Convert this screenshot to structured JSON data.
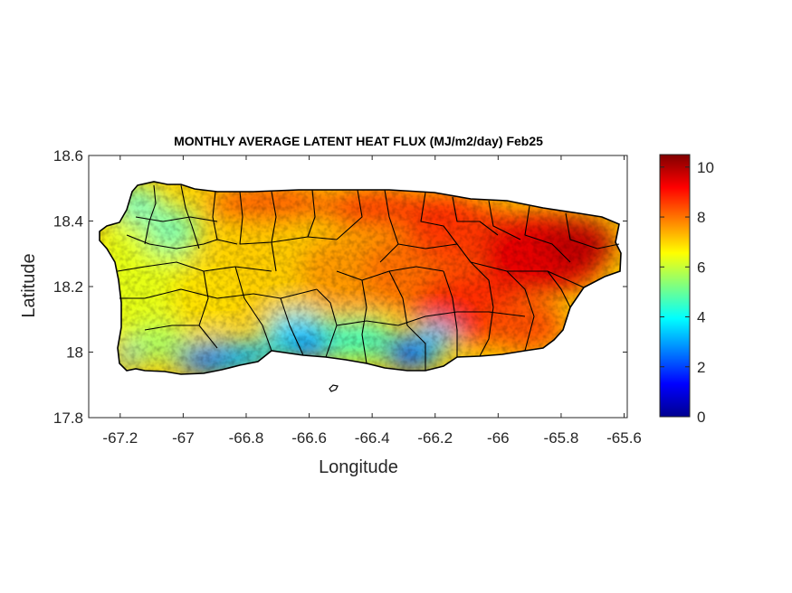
{
  "chart_data": {
    "type": "heatmap",
    "title": "MONTHLY AVERAGE LATENT HEAT FLUX (MJ/m2/day) Feb25",
    "xlabel": "Longitude",
    "ylabel": "Latitude",
    "xlim": [
      -67.3,
      -65.59
    ],
    "ylim": [
      17.8,
      18.6
    ],
    "x_ticks": [
      -67.2,
      -67,
      -66.8,
      -66.6,
      -66.4,
      -66.2,
      -66,
      -65.8,
      -65.6
    ],
    "x_tick_labels": [
      "-67.2",
      "-67",
      "-66.8",
      "-66.6",
      "-66.4",
      "-66.2",
      "-66",
      "-65.8",
      "-65.6"
    ],
    "y_ticks": [
      17.8,
      18,
      18.2,
      18.4,
      18.6
    ],
    "y_tick_labels": [
      "17.8",
      "18",
      "18.2",
      "18.4",
      "18.6"
    ],
    "colormap": "jet",
    "colorbar": {
      "range": [
        0,
        10.5
      ],
      "ticks": [
        0,
        2,
        4,
        6,
        8,
        10
      ],
      "tick_labels": [
        "0",
        "2",
        "4",
        "6",
        "8",
        "10"
      ]
    },
    "region_trend": [
      {
        "lon": -67.2,
        "value": 5.8
      },
      {
        "lon": -67.0,
        "value": 5.5
      },
      {
        "lon": -66.8,
        "value": 6.8
      },
      {
        "lon": -66.6,
        "value": 6.5
      },
      {
        "lon": -66.4,
        "value": 7.5
      },
      {
        "lon": -66.2,
        "value": 7.8
      },
      {
        "lon": -66.0,
        "value": 9.0
      },
      {
        "lon": -65.8,
        "value": 9.2
      }
    ],
    "north_coast_high": {
      "lon_min": -66.9,
      "value": 9.8
    },
    "south_coast_low": [
      {
        "lon": -66.95,
        "lat": 17.97,
        "value": 1.5
      },
      {
        "lon": -66.65,
        "lat": 17.99,
        "value": 2.0
      },
      {
        "lon": -66.52,
        "lat": 18.0,
        "value": 2.5
      },
      {
        "lon": -66.25,
        "lat": 18.02,
        "value": 1.8
      }
    ]
  }
}
